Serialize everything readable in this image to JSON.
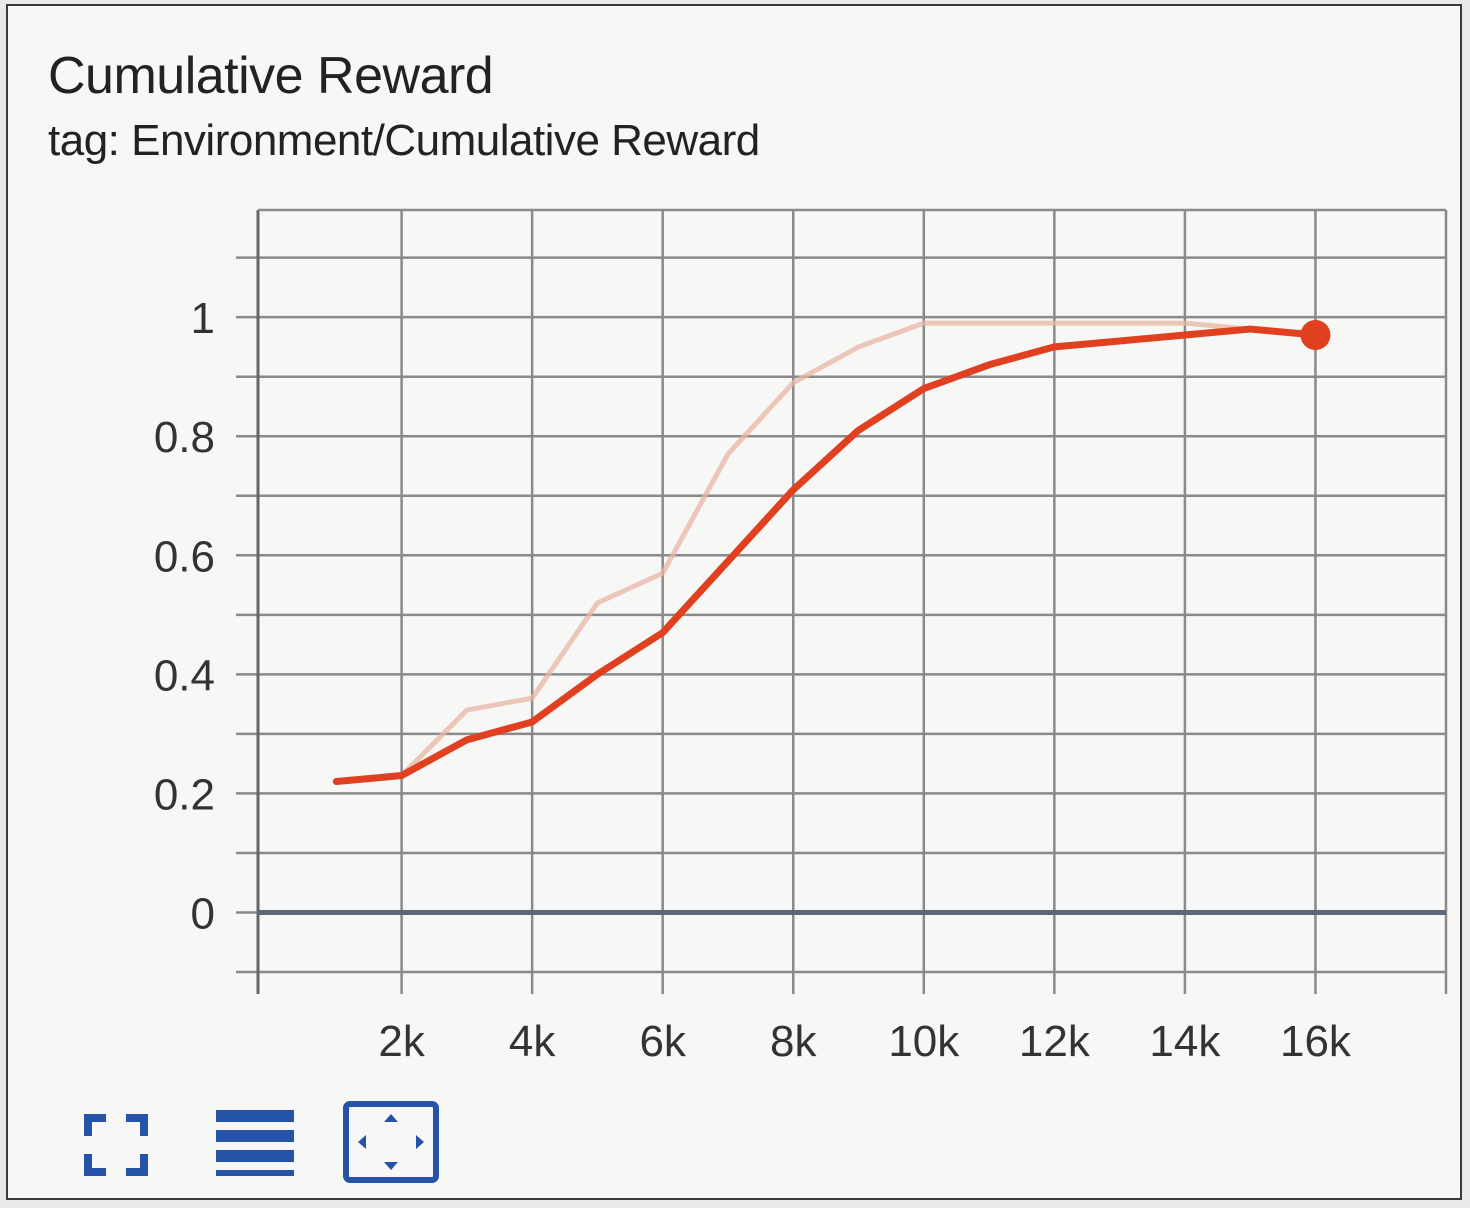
{
  "card": {
    "title": "Cumulative Reward",
    "subtitle": "tag: Environment/Cumulative Reward"
  },
  "chart_data": {
    "type": "line",
    "title": "Cumulative Reward",
    "subtitle": "tag: Environment/Cumulative Reward",
    "xlabel": "",
    "ylabel": "",
    "xlim": [
      -0.2,
      18
    ],
    "ylim": [
      -0.1,
      1.18
    ],
    "x_ticks": [
      "2k",
      "4k",
      "6k",
      "8k",
      "10k",
      "12k",
      "14k",
      "16k"
    ],
    "y_ticks": [
      "0",
      "0.2",
      "0.4",
      "0.6",
      "0.8",
      "1"
    ],
    "grid": true,
    "x_unit": "k",
    "series": [
      {
        "color": "#e8b5a3",
        "style": "raw",
        "x": [
          1,
          2,
          3,
          4,
          5,
          6,
          7,
          8,
          9,
          10,
          12,
          14,
          15,
          16
        ],
        "y": [
          0.22,
          0.23,
          0.34,
          0.36,
          0.52,
          0.57,
          0.77,
          0.89,
          0.95,
          0.99,
          0.99,
          0.99,
          0.98,
          0.97
        ]
      },
      {
        "color": "#e0401f",
        "style": "smoothed",
        "x": [
          1,
          2,
          3,
          4,
          5,
          6,
          7,
          8,
          9,
          10,
          11,
          12,
          13,
          14,
          15,
          16
        ],
        "y": [
          0.22,
          0.23,
          0.29,
          0.32,
          0.4,
          0.47,
          0.59,
          0.71,
          0.81,
          0.88,
          0.92,
          0.95,
          0.96,
          0.97,
          0.98,
          0.97
        ]
      }
    ]
  },
  "toolbar": {
    "buttons": [
      {
        "icon": "expand-icon",
        "color": "#2553a8"
      },
      {
        "icon": "menu-lines-icon",
        "color": "#2553a8"
      },
      {
        "icon": "fit-domain-icon",
        "color": "#2553a8"
      }
    ]
  }
}
